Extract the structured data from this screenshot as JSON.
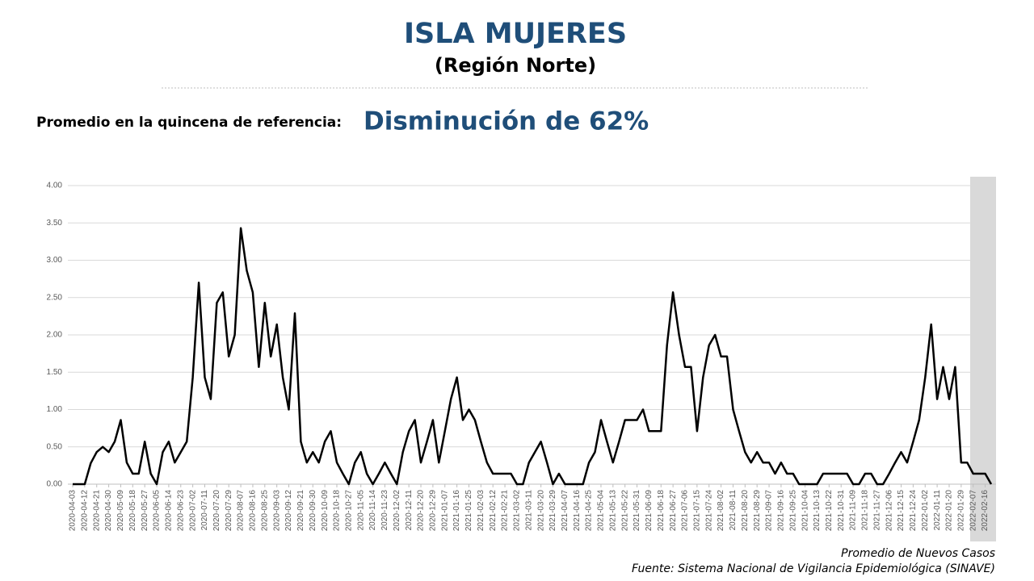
{
  "chart_data": {
    "type": "line",
    "title": "ISLA MUJERES",
    "subtitle": "(Región Norte)",
    "annotations": [
      "Promedio en la quincena de referencia:",
      "Disminución de 62%",
      "Promedio de Nuevos Casos",
      "Fuente: Sistema Nacional de Vigilancia Epidemiológica (SINAVE)"
    ],
    "color": "#000000",
    "grid": true,
    "ylim": [
      0,
      4
    ],
    "yticks": [
      {
        "value": 0,
        "label": "0.00"
      },
      {
        "value": 0.5,
        "label": "0.50"
      },
      {
        "value": 1,
        "label": "1.00"
      },
      {
        "value": 1.5,
        "label": "1.50"
      },
      {
        "value": 2,
        "label": "2.00"
      },
      {
        "value": 2.5,
        "label": "2.50"
      },
      {
        "value": 3,
        "label": "3.00"
      },
      {
        "value": 3.5,
        "label": "3.50"
      },
      {
        "value": 4,
        "label": "4.00"
      }
    ],
    "categories": [
      "2020-04-03",
      null,
      "2020-04-12",
      null,
      "2020-04-21",
      null,
      "2020-04-30",
      null,
      "2020-05-09",
      null,
      "2020-05-18",
      null,
      "2020-05-27",
      null,
      "2020-06-05",
      null,
      "2020-06-14",
      null,
      "2020-06-23",
      null,
      "2020-07-02",
      null,
      "2020-07-11",
      null,
      "2020-07-20",
      null,
      "2020-07-29",
      null,
      "2020-08-07",
      null,
      "2020-08-16",
      null,
      "2020-08-25",
      null,
      "2020-09-03",
      null,
      "2020-09-12",
      null,
      "2020-09-21",
      null,
      "2020-09-30",
      null,
      "2020-10-09",
      null,
      "2020-10-18",
      null,
      "2020-10-27",
      null,
      "2020-11-05",
      null,
      "2020-11-14",
      null,
      "2020-11-23",
      null,
      "2020-12-02",
      null,
      "2020-12-11",
      null,
      "2020-12-20",
      null,
      "2020-12-29",
      null,
      "2021-01-07",
      null,
      "2021-01-16",
      null,
      "2021-01-25",
      null,
      "2021-02-03",
      null,
      "2021-02-12",
      null,
      "2021-02-21",
      null,
      "2021-03-02",
      null,
      "2021-03-11",
      null,
      "2021-03-20",
      null,
      "2021-03-29",
      null,
      "2021-04-07",
      null,
      "2021-04-16",
      null,
      "2021-04-25",
      null,
      "2021-05-04",
      null,
      "2021-05-13",
      null,
      "2021-05-22",
      null,
      "2021-05-31",
      null,
      "2021-06-09",
      null,
      "2021-06-18",
      null,
      "2021-06-27",
      null,
      "2021-07-06",
      null,
      "2021-07-15",
      null,
      "2021-07-24",
      null,
      "2021-08-02",
      null,
      "2021-08-11",
      null,
      "2021-08-20",
      null,
      "2021-08-29",
      null,
      "2021-09-07",
      null,
      "2021-09-16",
      null,
      "2021-09-25",
      null,
      "2021-10-04",
      null,
      "2021-10-13",
      null,
      "2021-10-22",
      null,
      "2021-10-31",
      null,
      "2021-11-09",
      null,
      "2021-11-18",
      null,
      "2021-11-27",
      null,
      "2021-12-06",
      null,
      "2021-12-15",
      null,
      "2021-12-24",
      null,
      "2022-01-02",
      null,
      "2022-01-11",
      null,
      "2022-01-20",
      null,
      "2022-01-29",
      null,
      "2022-02-07",
      null,
      "2022-02-16",
      null
    ],
    "values": [
      0,
      0,
      0,
      0.28,
      0.43,
      0.5,
      0.43,
      0.57,
      0.86,
      0.29,
      0.14,
      0.14,
      0.57,
      0.14,
      0,
      0.43,
      0.57,
      0.29,
      0.43,
      0.57,
      1.43,
      2.7,
      1.43,
      1.14,
      2.43,
      2.57,
      1.71,
      2,
      3.43,
      2.86,
      2.57,
      1.57,
      2.43,
      1.71,
      2.14,
      1.43,
      1,
      2.29,
      0.57,
      0.29,
      0.43,
      0.29,
      0.57,
      0.71,
      0.29,
      0.14,
      0,
      0.29,
      0.43,
      0.14,
      0,
      0.14,
      0.29,
      0.14,
      0,
      0.43,
      0.71,
      0.86,
      0.29,
      0.57,
      0.86,
      0.29,
      0.71,
      1.14,
      1.43,
      0.86,
      1,
      0.86,
      0.57,
      0.29,
      0.14,
      0.14,
      0.14,
      0.14,
      0,
      0,
      0.29,
      0.43,
      0.57,
      0.29,
      0,
      0.14,
      0,
      0,
      0,
      0,
      0.29,
      0.43,
      0.86,
      0.57,
      0.29,
      0.57,
      0.86,
      0.86,
      0.86,
      1,
      0.71,
      0.71,
      0.71,
      1.86,
      2.57,
      2,
      1.57,
      1.57,
      0.71,
      1.43,
      1.86,
      2,
      1.71,
      1.71,
      1,
      0.71,
      0.43,
      0.29,
      0.43,
      0.29,
      0.29,
      0.14,
      0.29,
      0.14,
      0.14,
      0,
      0,
      0,
      0,
      0.14,
      0.14,
      0.14,
      0.14,
      0.14,
      0,
      0,
      0.14,
      0.14,
      0,
      0,
      0.14,
      0.29,
      0.43,
      0.29,
      0.57,
      0.86,
      1.43,
      2.14,
      1.14,
      1.57,
      1.14,
      1.57,
      0.29,
      0.29,
      0.14,
      0.14,
      0.14,
      0
    ]
  }
}
